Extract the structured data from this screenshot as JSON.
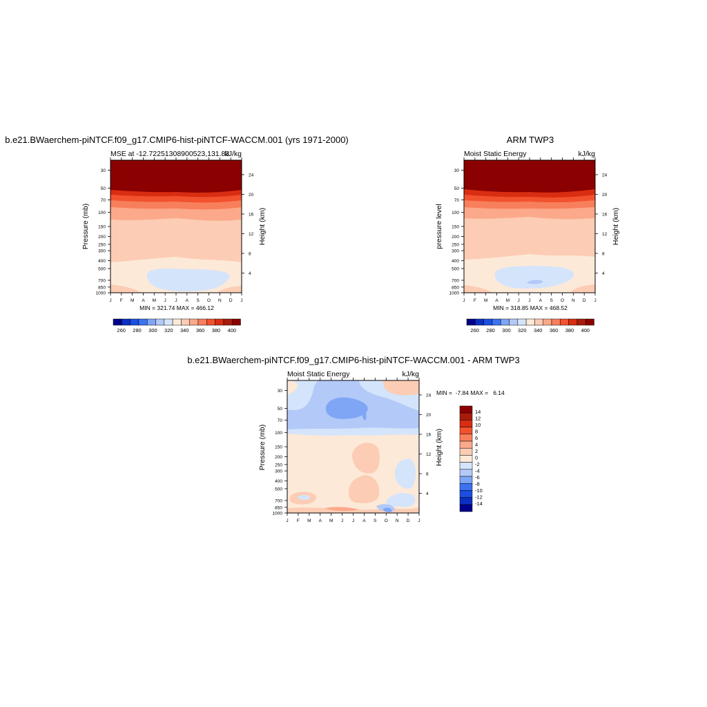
{
  "months": [
    "J",
    "F",
    "M",
    "A",
    "M",
    "J",
    "J",
    "A",
    "S",
    "O",
    "N",
    "D",
    "J"
  ],
  "chart_data": [
    {
      "type": "heatmap",
      "title": "b.e21.BWaerchem-piNTCF.f09_g17.CMIP6-hist-piNTCF-WACCM.001 (yrs 1971-2000)",
      "subtitle_left": "MSE at -12.72251308900523,131.83",
      "subtitle_right": "kJ/kg",
      "ylabel": "Pressure (mb)",
      "y2label": "Height (km)",
      "ylim": [
        1000,
        20
      ],
      "y_scale": "log",
      "pressure_ticks": [
        30,
        50,
        70,
        100,
        150,
        200,
        250,
        300,
        400,
        500,
        700,
        850,
        1000
      ],
      "height_ticks": [
        24,
        20,
        16,
        12,
        8,
        4
      ],
      "stats": "MIN = 321.74 MAX = 466.12",
      "colorbar_ticks": [
        260,
        280,
        300,
        320,
        340,
        360,
        380,
        400
      ]
    },
    {
      "type": "heatmap",
      "title": "ARM TWP3",
      "subtitle_left": "Moist Static Energy",
      "subtitle_right": "kJ/kg",
      "ylabel": "pressure level",
      "y2label": "Height (km)",
      "ylim": [
        1000,
        20
      ],
      "y_scale": "log",
      "pressure_ticks": [
        30,
        50,
        70,
        100,
        150,
        200,
        250,
        300,
        400,
        500,
        700,
        850,
        1000
      ],
      "height_ticks": [
        24,
        20,
        16,
        12,
        8,
        4
      ],
      "stats": "MIN = 318.85 MAX = 468.52",
      "colorbar_ticks": [
        260,
        280,
        300,
        320,
        340,
        360,
        380,
        400
      ]
    },
    {
      "type": "heatmap",
      "title": "b.e21.BWaerchem-piNTCF.f09_g17.CMIP6-hist-piNTCF-WACCM.001 - ARM TWP3",
      "subtitle_left": "Moist Static Energy",
      "subtitle_right": "kJ/kg",
      "ylabel": "Pressure (mb)",
      "y2label": "Height (km)",
      "ylim": [
        1000,
        20
      ],
      "y_scale": "log",
      "pressure_ticks": [
        30,
        50,
        70,
        100,
        150,
        200,
        250,
        300,
        400,
        500,
        700,
        850,
        1000
      ],
      "height_ticks": [
        24,
        20,
        16,
        12,
        8,
        4
      ],
      "stats": "MIN =  -7.84 MAX =   6.14",
      "colorbar_ticks": [
        14,
        12,
        10,
        8,
        6,
        4,
        2,
        0,
        -2,
        -4,
        -6,
        -8,
        -10,
        -12,
        -14
      ]
    }
  ],
  "colors": {
    "abs_scale": [
      "#00008b",
      "#0a2fc2",
      "#1a4fe0",
      "#3b73f0",
      "#7fa6f5",
      "#b3c9f7",
      "#d4e4fb",
      "#fde9d8",
      "#fcccb4",
      "#fba98a",
      "#f87f5c",
      "#f2522e",
      "#d92d12",
      "#a81d0a",
      "#8b0000"
    ],
    "diff_scale": [
      "#8b0000",
      "#a81d0a",
      "#d92d12",
      "#f2522e",
      "#f87f5c",
      "#fba98a",
      "#fcccb4",
      "#fde9d8",
      "#d4e4fb",
      "#b3c9f7",
      "#7fa6f5",
      "#3b73f0",
      "#1a4fe0",
      "#0a2fc2",
      "#00008b"
    ]
  }
}
